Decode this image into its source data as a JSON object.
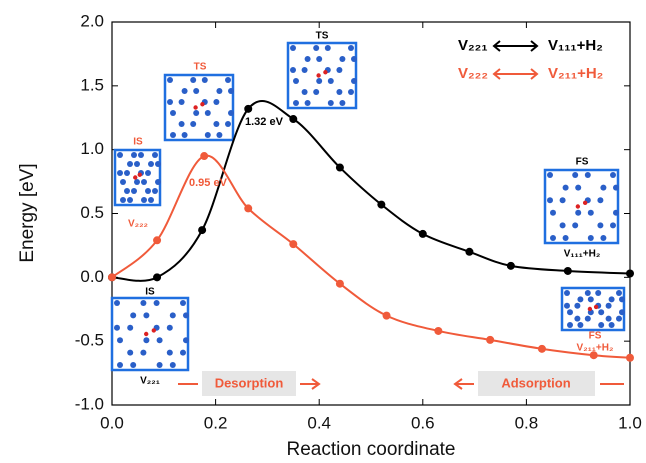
{
  "chart_data": {
    "type": "line",
    "x_label": "Reaction coordinate",
    "y_label": "Energy [eV]",
    "xlim": [
      0,
      1
    ],
    "ylim": [
      -1,
      2
    ],
    "xticks": [
      {
        "value": 0,
        "label": "0.0"
      },
      {
        "value": 0.2,
        "label": "0.2"
      },
      {
        "value": 0.4,
        "label": "0.4"
      },
      {
        "value": 0.6,
        "label": "0.6"
      },
      {
        "value": 0.8,
        "label": "0.8"
      },
      {
        "value": 1,
        "label": "1.0"
      }
    ],
    "yticks": [
      {
        "value": -1,
        "label": "-1.0"
      },
      {
        "value": -0.5,
        "label": "-0.5"
      },
      {
        "value": 0,
        "label": "0.0"
      },
      {
        "value": 0.5,
        "label": "0.5"
      },
      {
        "value": 1,
        "label": "1.0"
      },
      {
        "value": 1.5,
        "label": "1.5"
      },
      {
        "value": 2,
        "label": "2.0"
      }
    ],
    "series": [
      {
        "name": "V₂₂₁",
        "product": "V₁₁₁+H₂",
        "color": "#000000",
        "x": [
          0,
          0.087,
          0.174,
          0.263,
          0.35,
          0.44,
          0.52,
          0.6,
          0.69,
          0.77,
          0.88,
          1.0
        ],
        "values": [
          0,
          0.0,
          0.37,
          1.32,
          1.24,
          0.86,
          0.57,
          0.34,
          0.2,
          0.09,
          0.05,
          0.03
        ]
      },
      {
        "name": "V₂₂₂",
        "product": "V₂₁₁+H₂",
        "color": "#f05a3a",
        "x": [
          0,
          0.087,
          0.178,
          0.263,
          0.35,
          0.44,
          0.53,
          0.63,
          0.73,
          0.83,
          0.93,
          1.0
        ],
        "values": [
          0,
          0.29,
          0.95,
          0.54,
          0.26,
          -0.05,
          -0.3,
          -0.42,
          -0.49,
          -0.56,
          -0.61,
          -0.63
        ]
      }
    ],
    "annotations": {
      "black_peak": "1.32 eV",
      "red_peak": "0.95 eV",
      "desorption": "Desorption",
      "adsorption": "Adsorption"
    },
    "insets": [
      {
        "label": "IS",
        "caption": "V₂₂₂",
        "color": "#f05a3a"
      },
      {
        "label": "TS",
        "color": "#f05a3a"
      },
      {
        "label": "TS",
        "color": "#000000"
      },
      {
        "label": "IS",
        "caption": "V₂₂₁",
        "color": "#000000"
      },
      {
        "label": "FS",
        "caption": "V₁₁₁+H₂",
        "color": "#000000"
      },
      {
        "label": "FS",
        "caption": "V₂₁₁+H₂",
        "color": "#f05a3a"
      }
    ]
  }
}
